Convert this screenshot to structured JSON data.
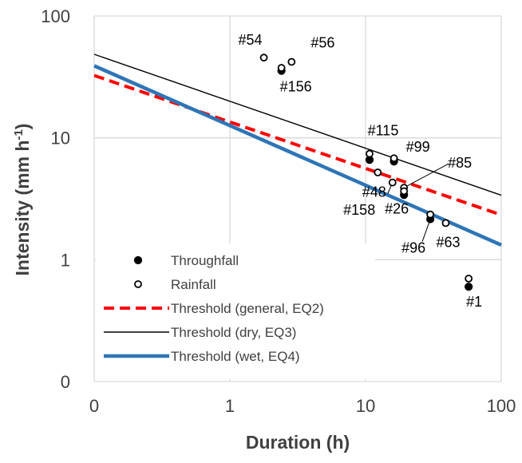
{
  "chart_data": {
    "type": "scatter",
    "xlabel": "Duration (h)",
    "ylabel": "Intensity (mm h",
    "ylabel_sup": "-1",
    "ylabel_close": ")",
    "x_scale": "log",
    "y_scale": "log",
    "xlim": [
      0.1,
      100
    ],
    "ylim": [
      0.1,
      100
    ],
    "x_ticks": [
      {
        "value": 0.1,
        "label": "0"
      },
      {
        "value": 1,
        "label": "1"
      },
      {
        "value": 10,
        "label": "10"
      },
      {
        "value": 100,
        "label": "100"
      }
    ],
    "y_ticks": [
      {
        "value": 0.1,
        "label": "0"
      },
      {
        "value": 1,
        "label": "1"
      },
      {
        "value": 10,
        "label": "10"
      },
      {
        "value": 100,
        "label": "100"
      }
    ],
    "grid": true,
    "legend_position": "bottom-left",
    "series": [
      {
        "name": "Throughfall",
        "marker": "filled-circle",
        "color": "#000000",
        "points": [
          {
            "x": 2.4,
            "y": 35.5
          },
          {
            "x": 10.7,
            "y": 6.6
          },
          {
            "x": 16.2,
            "y": 6.4
          },
          {
            "x": 19.2,
            "y": 3.4
          },
          {
            "x": 30.0,
            "y": 2.15
          },
          {
            "x": 57.5,
            "y": 0.6
          }
        ]
      },
      {
        "name": "Rainfall",
        "marker": "open-circle",
        "color": "#000000",
        "points": [
          {
            "x": 1.78,
            "y": 45.5
          },
          {
            "x": 2.4,
            "y": 37.5
          },
          {
            "x": 2.85,
            "y": 42.0
          },
          {
            "x": 10.7,
            "y": 7.4
          },
          {
            "x": 16.2,
            "y": 6.8
          },
          {
            "x": 12.3,
            "y": 5.2
          },
          {
            "x": 15.8,
            "y": 4.3
          },
          {
            "x": 19.2,
            "y": 3.9
          },
          {
            "x": 19.2,
            "y": 3.65
          },
          {
            "x": 30.0,
            "y": 2.35
          },
          {
            "x": 39.0,
            "y": 2.0
          },
          {
            "x": 57.5,
            "y": 0.7
          }
        ]
      },
      {
        "name": "Threshold (general, EQ2)",
        "type": "line",
        "dash": "dashed",
        "color": "#ff0000",
        "x": [
          0.1,
          100
        ],
        "y": [
          32.5,
          2.33
        ]
      },
      {
        "name": "Threshold (dry, EQ3)",
        "type": "line",
        "color": "#000000",
        "x": [
          0.1,
          100
        ],
        "y": [
          48.5,
          3.38
        ]
      },
      {
        "name": "Threshold (wet, EQ4)",
        "type": "line",
        "color": "#2e75b6",
        "x": [
          0.1,
          100
        ],
        "y": [
          39.0,
          1.32
        ]
      }
    ],
    "annotations": [
      {
        "text": "#54",
        "x": 1.78,
        "y": 45.5
      },
      {
        "text": "#56",
        "x": 2.85,
        "y": 42.0
      },
      {
        "text": "#156",
        "x": 2.4,
        "y": 35.5
      },
      {
        "text": "#115",
        "x": 10.7,
        "y": 7.4
      },
      {
        "text": "#99",
        "x": 16.2,
        "y": 6.8
      },
      {
        "text": "#85",
        "x": 19.2,
        "y": 3.9
      },
      {
        "text": "#48",
        "x": 15.8,
        "y": 4.3
      },
      {
        "text": "#158",
        "x": 19.2,
        "y": 3.4
      },
      {
        "text": "#26",
        "x": 19.2,
        "y": 3.65
      },
      {
        "text": "#96",
        "x": 30.0,
        "y": 2.15
      },
      {
        "text": "#63",
        "x": 39.0,
        "y": 2.0
      },
      {
        "text": "#1",
        "x": 57.5,
        "y": 0.6
      }
    ]
  }
}
